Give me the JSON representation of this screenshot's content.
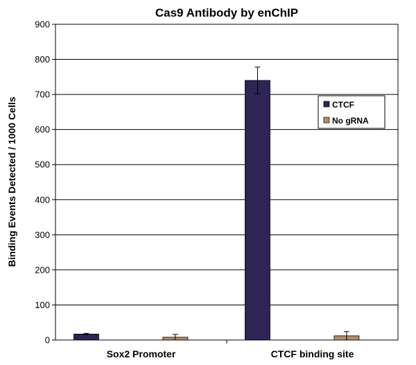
{
  "chart_data": {
    "type": "bar",
    "title": "Cas9 Antibody by enChIP",
    "xlabel": "",
    "ylabel": "Binding Events Detected / 1000 Cells",
    "ylim": [
      0,
      900
    ],
    "yticks": [
      0,
      100,
      200,
      300,
      400,
      500,
      600,
      700,
      800,
      900
    ],
    "categories": [
      "Sox2 Promoter",
      "CTCF binding site"
    ],
    "grid": true,
    "legend_position": "right",
    "series": [
      {
        "name": "CTCF",
        "color": "#2e2456",
        "values": [
          17,
          740
        ],
        "errors": [
          2,
          38
        ]
      },
      {
        "name": "No gRNA",
        "color": "#b88c68",
        "values": [
          8,
          12
        ],
        "errors": [
          8,
          12
        ]
      }
    ]
  }
}
